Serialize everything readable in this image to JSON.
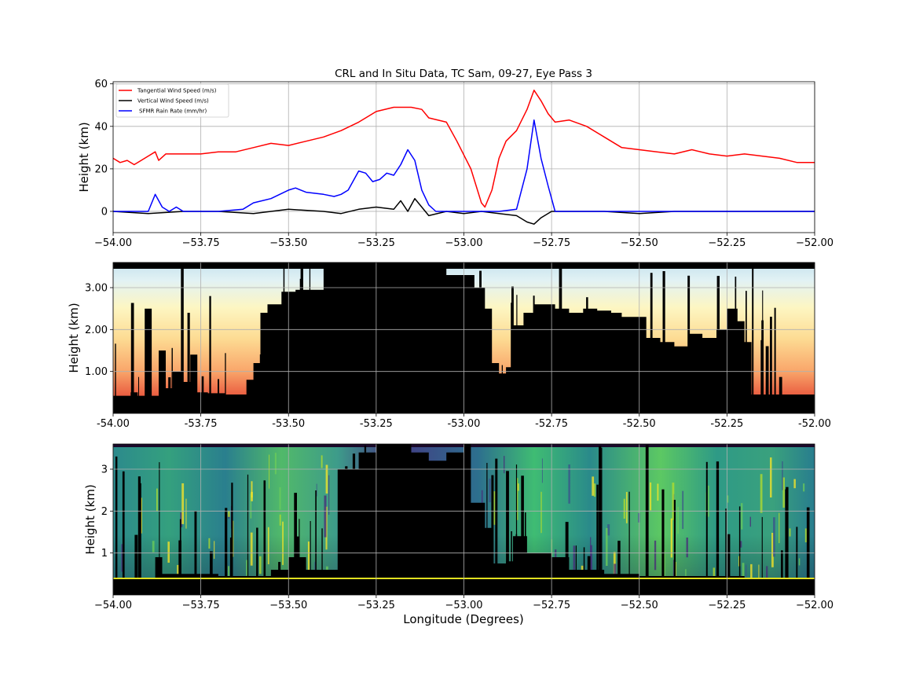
{
  "chart_data": [
    {
      "type": "line",
      "title": "CRL and In Situ Data, TC Sam, 09-27, Eye Pass 3",
      "xlabel": "",
      "ylabel": "Height (km)",
      "xlim": [
        -54.0,
        -52.0
      ],
      "ylim": [
        -10,
        61
      ],
      "x_ticks": [
        -54.0,
        -53.75,
        -53.5,
        -53.25,
        -53.0,
        -52.75,
        -52.5,
        -52.25,
        -52.0
      ],
      "x_tick_labels": [
        "−54.00",
        "−53.75",
        "−53.50",
        "−53.25",
        "−53.00",
        "−52.75",
        "−52.50",
        "−52.25",
        "−52.00"
      ],
      "y_ticks": [
        0,
        20,
        40,
        60
      ],
      "y_tick_labels": [
        "0",
        "20",
        "40",
        "60"
      ],
      "grid": true,
      "legend": "top-left",
      "series": [
        {
          "name": "Tangential Wind Speed (m/s)",
          "color": "#ff0000",
          "points": [
            [
              -54.0,
              25
            ],
            [
              -53.98,
              23
            ],
            [
              -53.96,
              24
            ],
            [
              -53.94,
              22
            ],
            [
              -53.92,
              24
            ],
            [
              -53.9,
              26
            ],
            [
              -53.88,
              28
            ],
            [
              -53.87,
              24
            ],
            [
              -53.85,
              27
            ],
            [
              -53.8,
              27
            ],
            [
              -53.75,
              27
            ],
            [
              -53.7,
              28
            ],
            [
              -53.65,
              28
            ],
            [
              -53.6,
              30
            ],
            [
              -53.55,
              32
            ],
            [
              -53.5,
              31
            ],
            [
              -53.45,
              33
            ],
            [
              -53.4,
              35
            ],
            [
              -53.35,
              38
            ],
            [
              -53.3,
              42
            ],
            [
              -53.28,
              44
            ],
            [
              -53.25,
              47
            ],
            [
              -53.2,
              49
            ],
            [
              -53.15,
              49
            ],
            [
              -53.12,
              48
            ],
            [
              -53.1,
              44
            ],
            [
              -53.05,
              42
            ],
            [
              -53.02,
              33
            ],
            [
              -52.98,
              20
            ],
            [
              -52.95,
              4
            ],
            [
              -52.94,
              2
            ],
            [
              -52.92,
              10
            ],
            [
              -52.9,
              25
            ],
            [
              -52.88,
              33
            ],
            [
              -52.85,
              38
            ],
            [
              -52.82,
              48
            ],
            [
              -52.8,
              57
            ],
            [
              -52.78,
              52
            ],
            [
              -52.76,
              46
            ],
            [
              -52.74,
              42
            ],
            [
              -52.7,
              43
            ],
            [
              -52.65,
              40
            ],
            [
              -52.6,
              35
            ],
            [
              -52.55,
              30
            ],
            [
              -52.5,
              29
            ],
            [
              -52.45,
              28
            ],
            [
              -52.4,
              27
            ],
            [
              -52.35,
              29
            ],
            [
              -52.3,
              27
            ],
            [
              -52.25,
              26
            ],
            [
              -52.2,
              27
            ],
            [
              -52.15,
              26
            ],
            [
              -52.1,
              25
            ],
            [
              -52.05,
              23
            ],
            [
              -52.0,
              23
            ]
          ]
        },
        {
          "name": "Vertical Wind Speed (m/s)",
          "color": "#000000",
          "points": [
            [
              -54.0,
              0
            ],
            [
              -53.9,
              -1
            ],
            [
              -53.8,
              0
            ],
            [
              -53.7,
              0
            ],
            [
              -53.6,
              -1
            ],
            [
              -53.5,
              1
            ],
            [
              -53.4,
              0
            ],
            [
              -53.35,
              -1
            ],
            [
              -53.3,
              1
            ],
            [
              -53.25,
              2
            ],
            [
              -53.2,
              1
            ],
            [
              -53.18,
              5
            ],
            [
              -53.16,
              0
            ],
            [
              -53.14,
              6
            ],
            [
              -53.1,
              -2
            ],
            [
              -53.05,
              0
            ],
            [
              -53.0,
              -1
            ],
            [
              -52.95,
              0
            ],
            [
              -52.9,
              -1
            ],
            [
              -52.85,
              -2
            ],
            [
              -52.82,
              -5
            ],
            [
              -52.8,
              -6
            ],
            [
              -52.78,
              -3
            ],
            [
              -52.75,
              0
            ],
            [
              -52.7,
              0
            ],
            [
              -52.6,
              0
            ],
            [
              -52.5,
              -1
            ],
            [
              -52.4,
              0
            ],
            [
              -52.3,
              0
            ],
            [
              -52.2,
              0
            ],
            [
              -52.1,
              0
            ],
            [
              -52.0,
              0
            ]
          ]
        },
        {
          "name": "SFMR Rain Rate (mm/hr)",
          "color": "#0000ff",
          "points": [
            [
              -54.0,
              0
            ],
            [
              -53.9,
              0
            ],
            [
              -53.88,
              8
            ],
            [
              -53.86,
              2
            ],
            [
              -53.84,
              0
            ],
            [
              -53.82,
              2
            ],
            [
              -53.8,
              0
            ],
            [
              -53.7,
              0
            ],
            [
              -53.63,
              1
            ],
            [
              -53.6,
              4
            ],
            [
              -53.55,
              6
            ],
            [
              -53.5,
              10
            ],
            [
              -53.48,
              11
            ],
            [
              -53.45,
              9
            ],
            [
              -53.4,
              8
            ],
            [
              -53.37,
              7
            ],
            [
              -53.35,
              8
            ],
            [
              -53.33,
              10
            ],
            [
              -53.3,
              19
            ],
            [
              -53.28,
              18
            ],
            [
              -53.26,
              14
            ],
            [
              -53.24,
              15
            ],
            [
              -53.22,
              18
            ],
            [
              -53.2,
              17
            ],
            [
              -53.18,
              22
            ],
            [
              -53.16,
              29
            ],
            [
              -53.14,
              24
            ],
            [
              -53.12,
              10
            ],
            [
              -53.1,
              3
            ],
            [
              -53.08,
              0
            ],
            [
              -52.9,
              0
            ],
            [
              -52.85,
              1
            ],
            [
              -52.82,
              20
            ],
            [
              -52.8,
              43
            ],
            [
              -52.78,
              25
            ],
            [
              -52.76,
              12
            ],
            [
              -52.74,
              0
            ],
            [
              -52.0,
              0
            ]
          ]
        }
      ]
    },
    {
      "type": "heatmap",
      "title": "",
      "xlabel": "",
      "ylabel": "Height (km)",
      "xlim": [
        -54.0,
        -52.0
      ],
      "ylim": [
        0.0,
        3.6
      ],
      "x_ticks": [
        -54.0,
        -53.75,
        -53.5,
        -53.25,
        -53.0,
        -52.75,
        -52.5,
        -52.25,
        -52.0
      ],
      "x_tick_labels": [
        "-54.00",
        "-53.75",
        "-53.50",
        "-53.25",
        "-53.00",
        "-52.75",
        "-52.50",
        "-52.25",
        "-52.00"
      ],
      "y_ticks": [
        1.0,
        2.0,
        3.0
      ],
      "y_tick_labels": [
        "1.00",
        "2.00",
        "3.00"
      ],
      "grid": true,
      "colormap": "RdYlBu_r",
      "masked_color": "#000000",
      "mask_top": [
        [
          -54.0,
          0.42
        ],
        [
          -53.97,
          0.42
        ],
        [
          -53.95,
          0.5
        ],
        [
          -53.93,
          0.42
        ],
        [
          -53.91,
          2.5
        ],
        [
          -53.89,
          0.42
        ],
        [
          -53.87,
          1.5
        ],
        [
          -53.85,
          0.6
        ],
        [
          -53.83,
          1.0
        ],
        [
          -53.8,
          0.75
        ],
        [
          -53.78,
          1.4
        ],
        [
          -53.76,
          0.5
        ],
        [
          -53.73,
          0.48
        ],
        [
          -53.68,
          0.45
        ],
        [
          -53.65,
          0.45
        ],
        [
          -53.62,
          0.8
        ],
        [
          -53.6,
          1.2
        ],
        [
          -53.58,
          2.4
        ],
        [
          -53.56,
          2.6
        ],
        [
          -53.52,
          2.9
        ],
        [
          -53.48,
          2.95
        ],
        [
          -53.44,
          2.95
        ],
        [
          -53.4,
          3.45
        ],
        [
          -53.3,
          3.45
        ],
        [
          -53.2,
          3.5
        ],
        [
          -53.1,
          3.5
        ],
        [
          -53.05,
          3.3
        ],
        [
          -53.0,
          3.3
        ],
        [
          -52.97,
          3.0
        ],
        [
          -52.94,
          2.5
        ],
        [
          -52.92,
          1.2
        ],
        [
          -52.9,
          0.95
        ],
        [
          -52.88,
          1.1
        ],
        [
          -52.86,
          2.1
        ],
        [
          -52.83,
          2.4
        ],
        [
          -52.8,
          2.6
        ],
        [
          -52.77,
          2.6
        ],
        [
          -52.74,
          2.5
        ],
        [
          -52.7,
          2.4
        ],
        [
          -52.66,
          2.5
        ],
        [
          -52.62,
          2.45
        ],
        [
          -52.58,
          2.4
        ],
        [
          -52.55,
          2.3
        ],
        [
          -52.52,
          2.3
        ],
        [
          -52.48,
          1.8
        ],
        [
          -52.44,
          1.7
        ],
        [
          -52.4,
          1.6
        ],
        [
          -52.36,
          1.9
        ],
        [
          -52.32,
          1.8
        ],
        [
          -52.28,
          2.0
        ],
        [
          -52.25,
          2.5
        ],
        [
          -52.22,
          2.2
        ],
        [
          -52.2,
          1.7
        ],
        [
          -52.18,
          0.45
        ],
        [
          -52.14,
          0.45
        ],
        [
          -52.1,
          0.45
        ],
        [
          -52.06,
          0.45
        ],
        [
          -52.02,
          0.45
        ],
        [
          -52.0,
          0.45
        ]
      ]
    },
    {
      "type": "heatmap",
      "title": "",
      "xlabel": "Longitude (Degrees)",
      "ylabel": "Height (km)",
      "xlim": [
        -54.0,
        -52.0
      ],
      "ylim": [
        0.0,
        3.6
      ],
      "x_ticks": [
        -54.0,
        -53.75,
        -53.5,
        -53.25,
        -53.0,
        -52.75,
        -52.5,
        -52.25,
        -52.0
      ],
      "x_tick_labels": [
        "−54.00",
        "−53.75",
        "−53.50",
        "−53.25",
        "−53.00",
        "−52.75",
        "−52.50",
        "−52.25",
        "−52.00"
      ],
      "y_ticks": [
        1,
        2,
        3
      ],
      "y_tick_labels": [
        "1",
        "2",
        "3"
      ],
      "grid": true,
      "colormap": "viridis",
      "masked_color": "#000000",
      "mask_top": [
        [
          -54.0,
          0.4
        ],
        [
          -53.9,
          0.4
        ],
        [
          -53.88,
          0.9
        ],
        [
          -53.86,
          0.5
        ],
        [
          -53.8,
          0.5
        ],
        [
          -53.7,
          0.45
        ],
        [
          -53.6,
          0.45
        ],
        [
          -53.55,
          0.6
        ],
        [
          -53.5,
          0.9
        ],
        [
          -53.45,
          0.6
        ],
        [
          -53.4,
          0.6
        ],
        [
          -53.36,
          3.0
        ],
        [
          -53.3,
          3.4
        ],
        [
          -53.25,
          3.6
        ],
        [
          -53.2,
          3.6
        ],
        [
          -53.15,
          3.4
        ],
        [
          -53.1,
          3.2
        ],
        [
          -53.05,
          3.4
        ],
        [
          -53.0,
          3.6
        ],
        [
          -52.98,
          2.2
        ],
        [
          -52.94,
          1.6
        ],
        [
          -52.92,
          0.75
        ],
        [
          -52.88,
          0.8
        ],
        [
          -52.86,
          1.4
        ],
        [
          -52.82,
          1.0
        ],
        [
          -52.75,
          0.9
        ],
        [
          -52.7,
          0.6
        ],
        [
          -52.6,
          0.5
        ],
        [
          -52.5,
          0.45
        ],
        [
          -52.4,
          0.45
        ],
        [
          -52.3,
          0.45
        ],
        [
          -52.2,
          0.4
        ],
        [
          -52.1,
          0.4
        ],
        [
          -52.0,
          0.4
        ]
      ]
    }
  ]
}
